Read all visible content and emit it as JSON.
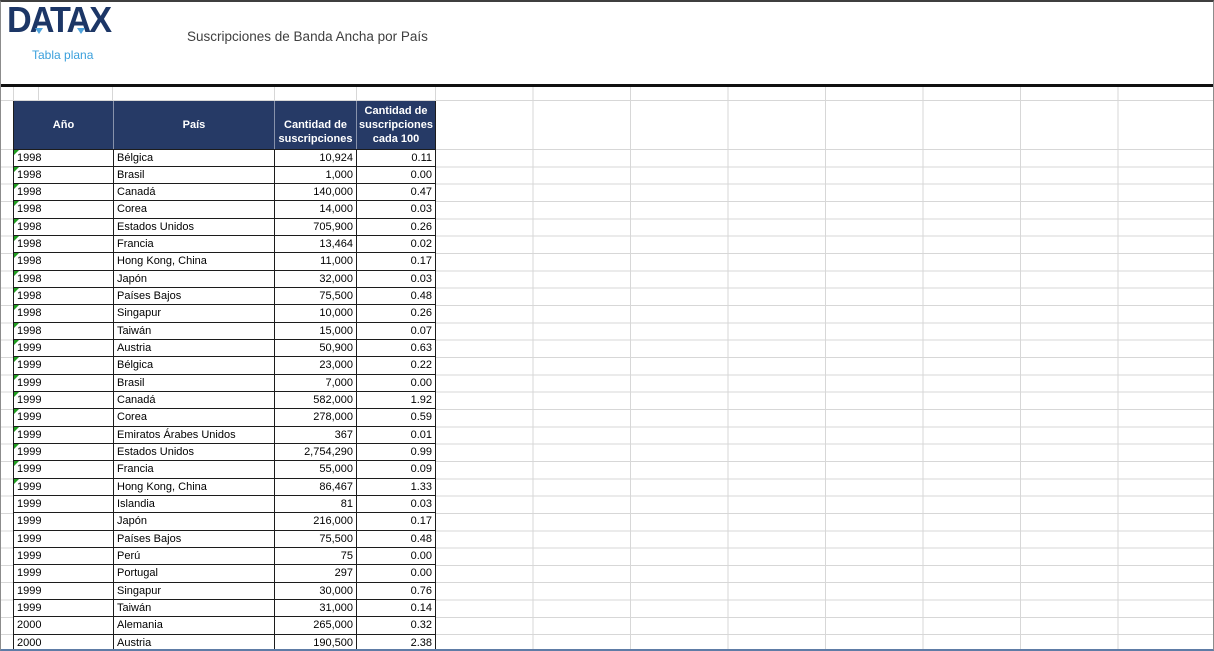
{
  "brand": {
    "name": "DATAX",
    "subtitle": "Tabla plana"
  },
  "header": {
    "title": "Suscripciones de Banda Ancha por País"
  },
  "colors": {
    "table_header_bg": "#263A66",
    "brand_navy": "#1C3666",
    "brand_accent_blue": "#3BA0DC",
    "flag_green": "#1F9D1F",
    "gridline": "#D7D7D7"
  },
  "table": {
    "columns": [
      "Año",
      "País",
      "Cantidad de suscripciones",
      "Cantidad de suscripciones cada 100"
    ],
    "rows": [
      {
        "year": "1998",
        "country": "Bélgica",
        "subs": "10,924",
        "per100": "0.11",
        "flagged": true
      },
      {
        "year": "1998",
        "country": "Brasil",
        "subs": "1,000",
        "per100": "0.00",
        "flagged": true
      },
      {
        "year": "1998",
        "country": "Canadá",
        "subs": "140,000",
        "per100": "0.47",
        "flagged": true
      },
      {
        "year": "1998",
        "country": "Corea",
        "subs": "14,000",
        "per100": "0.03",
        "flagged": true
      },
      {
        "year": "1998",
        "country": "Estados Unidos",
        "subs": "705,900",
        "per100": "0.26",
        "flagged": true
      },
      {
        "year": "1998",
        "country": "Francia",
        "subs": "13,464",
        "per100": "0.02",
        "flagged": true
      },
      {
        "year": "1998",
        "country": "Hong Kong, China",
        "subs": "11,000",
        "per100": "0.17",
        "flagged": true
      },
      {
        "year": "1998",
        "country": "Japón",
        "subs": "32,000",
        "per100": "0.03",
        "flagged": true
      },
      {
        "year": "1998",
        "country": "Países Bajos",
        "subs": "75,500",
        "per100": "0.48",
        "flagged": true
      },
      {
        "year": "1998",
        "country": "Singapur",
        "subs": "10,000",
        "per100": "0.26",
        "flagged": true
      },
      {
        "year": "1998",
        "country": "Taiwán",
        "subs": "15,000",
        "per100": "0.07",
        "flagged": true
      },
      {
        "year": "1999",
        "country": "Austria",
        "subs": "50,900",
        "per100": "0.63",
        "flagged": true
      },
      {
        "year": "1999",
        "country": "Bélgica",
        "subs": "23,000",
        "per100": "0.22",
        "flagged": true
      },
      {
        "year": "1999",
        "country": "Brasil",
        "subs": "7,000",
        "per100": "0.00",
        "flagged": true
      },
      {
        "year": "1999",
        "country": "Canadá",
        "subs": "582,000",
        "per100": "1.92",
        "flagged": true
      },
      {
        "year": "1999",
        "country": "Corea",
        "subs": "278,000",
        "per100": "0.59",
        "flagged": true
      },
      {
        "year": "1999",
        "country": "Emiratos Árabes Unidos",
        "subs": "367",
        "per100": "0.01",
        "flagged": true
      },
      {
        "year": "1999",
        "country": "Estados Unidos",
        "subs": "2,754,290",
        "per100": "0.99",
        "flagged": true
      },
      {
        "year": "1999",
        "country": "Francia",
        "subs": "55,000",
        "per100": "0.09",
        "flagged": true
      },
      {
        "year": "1999",
        "country": "Hong Kong, China",
        "subs": "86,467",
        "per100": "1.33",
        "flagged": true
      },
      {
        "year": "1999",
        "country": "Islandia",
        "subs": "81",
        "per100": "0.03",
        "flagged": false
      },
      {
        "year": "1999",
        "country": "Japón",
        "subs": "216,000",
        "per100": "0.17",
        "flagged": false
      },
      {
        "year": "1999",
        "country": "Países Bajos",
        "subs": "75,500",
        "per100": "0.48",
        "flagged": false
      },
      {
        "year": "1999",
        "country": "Perú",
        "subs": "75",
        "per100": "0.00",
        "flagged": false
      },
      {
        "year": "1999",
        "country": "Portugal",
        "subs": "297",
        "per100": "0.00",
        "flagged": false
      },
      {
        "year": "1999",
        "country": "Singapur",
        "subs": "30,000",
        "per100": "0.76",
        "flagged": false
      },
      {
        "year": "1999",
        "country": "Taiwán",
        "subs": "31,000",
        "per100": "0.14",
        "flagged": false
      },
      {
        "year": "2000",
        "country": "Alemania",
        "subs": "265,000",
        "per100": "0.32",
        "flagged": false
      },
      {
        "year": "2000",
        "country": "Austria",
        "subs": "190,500",
        "per100": "2.38",
        "flagged": false
      }
    ]
  }
}
